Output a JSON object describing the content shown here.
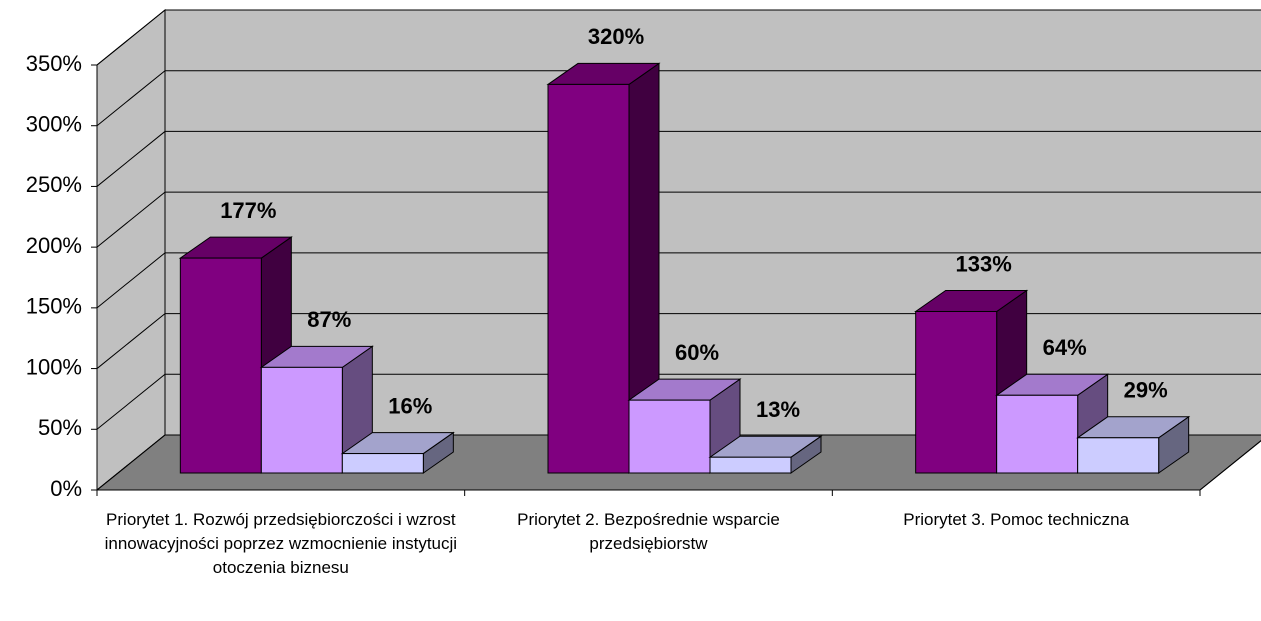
{
  "chart_data": {
    "type": "bar3d",
    "categories": [
      "Priorytet 1. Rozwój przedsiębiorczości i wzrost innowacyjności poprzez wzmocnienie instytucji otoczenia biznesu",
      "Priorytet 2. Bezpośrednie wsparcie przedsiębiorstw",
      "Priorytet 3. Pomoc techniczna"
    ],
    "series": [
      {
        "color": "#800080",
        "values": [
          177,
          320,
          133
        ],
        "value_labels": [
          "177%",
          "320%",
          "133%"
        ]
      },
      {
        "color": "#cc99ff",
        "values": [
          87,
          60,
          64
        ],
        "value_labels": [
          "87%",
          "60%",
          "64%"
        ]
      },
      {
        "color": "#ccccff",
        "values": [
          16,
          13,
          29
        ],
        "value_labels": [
          "16%",
          "13%",
          "29%"
        ]
      }
    ],
    "ylim": [
      0,
      350
    ],
    "yticks": [
      {
        "value": 0,
        "label": "0%"
      },
      {
        "value": 50,
        "label": "50%"
      },
      {
        "value": 100,
        "label": "100%"
      },
      {
        "value": 150,
        "label": "150%"
      },
      {
        "value": 200,
        "label": "200%"
      },
      {
        "value": 250,
        "label": "250%"
      },
      {
        "value": 300,
        "label": "300%"
      },
      {
        "value": 350,
        "label": "350%"
      }
    ],
    "grid": true
  }
}
